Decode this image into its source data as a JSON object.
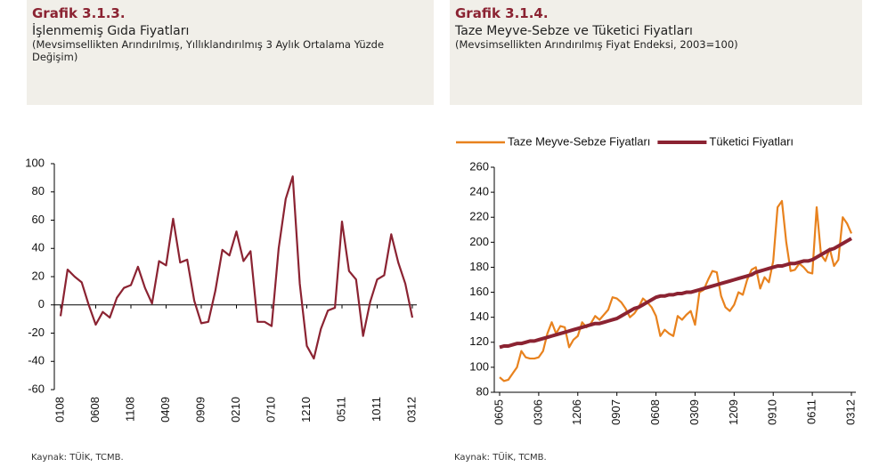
{
  "chart_data": [
    {
      "type": "line",
      "label": "Grafik 3.1.3.",
      "title": "İşlenmemiş Gıda Fiyatları",
      "subtitle": "(Mevsimsellikten Arındırılmış, Yıllıklandırılmış 3 Aylık Ortalama Yüzde Değişim)",
      "source": "Kaynak: TÜİK, TCMB.",
      "categories": [
        "0108",
        null,
        null,
        null,
        null,
        "0608",
        null,
        null,
        null,
        null,
        "1108",
        null,
        null,
        null,
        null,
        "0409",
        null,
        null,
        null,
        null,
        "0909",
        null,
        null,
        null,
        null,
        "0210",
        null,
        null,
        null,
        null,
        "0710",
        null,
        null,
        null,
        null,
        "1210",
        null,
        null,
        null,
        null,
        "0511",
        null,
        null,
        null,
        null,
        "1011",
        null,
        null,
        null,
        null,
        "0312"
      ],
      "values": [
        -8,
        25,
        20,
        16,
        0,
        -14,
        -5,
        -9,
        5,
        12,
        14,
        27,
        12,
        1,
        31,
        28,
        61,
        30,
        32,
        3,
        -13,
        -12,
        10,
        39,
        35,
        52,
        31,
        38,
        -12,
        -12,
        -15,
        40,
        75,
        91,
        15,
        -29,
        -38,
        -17,
        -4,
        -2,
        59,
        24,
        18,
        -22,
        2,
        18,
        21,
        50,
        30,
        15,
        -9
      ],
      "color": "#8b2332",
      "ylim": [
        -60,
        100
      ],
      "yticks": [
        -60,
        -40,
        -20,
        0,
        20,
        40,
        60,
        80,
        100
      ]
    },
    {
      "type": "line",
      "label": "Grafik 3.1.4.",
      "title": "Taze Meyve-Sebze ve Tüketici Fiyatları",
      "subtitle": "(Mevsimsellikten Arındırılmış Fiyat Endeksi, 2003=100)",
      "source": "Kaynak: TÜİK, TCMB.",
      "categories": [
        "0605",
        null,
        null,
        null,
        null,
        null,
        null,
        null,
        null,
        "0306",
        null,
        null,
        null,
        null,
        null,
        null,
        null,
        null,
        "1206",
        null,
        null,
        null,
        null,
        null,
        null,
        null,
        null,
        "0907",
        null,
        null,
        null,
        null,
        null,
        null,
        null,
        null,
        "0608",
        null,
        null,
        null,
        null,
        null,
        null,
        null,
        null,
        "0309",
        null,
        null,
        null,
        null,
        null,
        null,
        null,
        null,
        "1209",
        null,
        null,
        null,
        null,
        null,
        null,
        null,
        null,
        "0910",
        null,
        null,
        null,
        null,
        null,
        null,
        null,
        null,
        "0611",
        null,
        null,
        null,
        null,
        null,
        null,
        null,
        null,
        "0312"
      ],
      "series": [
        {
          "name": "Taze Meyve-Sebze Fiyatları",
          "color": "#e8821e",
          "values": [
            92,
            89,
            90,
            95,
            100,
            113,
            108,
            107,
            107,
            108,
            113,
            127,
            136,
            127,
            133,
            132,
            116,
            122,
            125,
            136,
            132,
            135,
            141,
            138,
            142,
            146,
            156,
            155,
            152,
            147,
            140,
            143,
            148,
            155,
            152,
            148,
            141,
            125,
            130,
            127,
            125,
            141,
            138,
            142,
            145,
            134,
            160,
            162,
            170,
            177,
            176,
            157,
            148,
            145,
            150,
            160,
            158,
            170,
            178,
            180,
            163,
            172,
            168,
            185,
            228,
            233,
            200,
            177,
            178,
            183,
            180,
            176,
            175,
            228,
            190,
            185,
            195,
            181,
            186,
            220,
            215,
            207
          ]
        },
        {
          "name": "Tüketici Fiyatları",
          "color": "#8b2332",
          "values": [
            116,
            117,
            117,
            118,
            119,
            119,
            120,
            121,
            121,
            122,
            123,
            124,
            125,
            126,
            127,
            128,
            129,
            130,
            131,
            132,
            133,
            134,
            135,
            135,
            136,
            137,
            138,
            139,
            141,
            143,
            145,
            147,
            148,
            150,
            152,
            154,
            156,
            157,
            157,
            158,
            158,
            159,
            159,
            160,
            160,
            161,
            162,
            163,
            164,
            165,
            166,
            167,
            168,
            169,
            170,
            171,
            172,
            173,
            174,
            176,
            177,
            178,
            179,
            180,
            181,
            181,
            182,
            183,
            183,
            184,
            185,
            185,
            186,
            188,
            190,
            192,
            194,
            195,
            197,
            199,
            201,
            203
          ]
        }
      ],
      "legend": "top",
      "ylim": [
        80,
        260
      ],
      "yticks": [
        80,
        100,
        120,
        140,
        160,
        180,
        200,
        220,
        240,
        260
      ]
    }
  ]
}
